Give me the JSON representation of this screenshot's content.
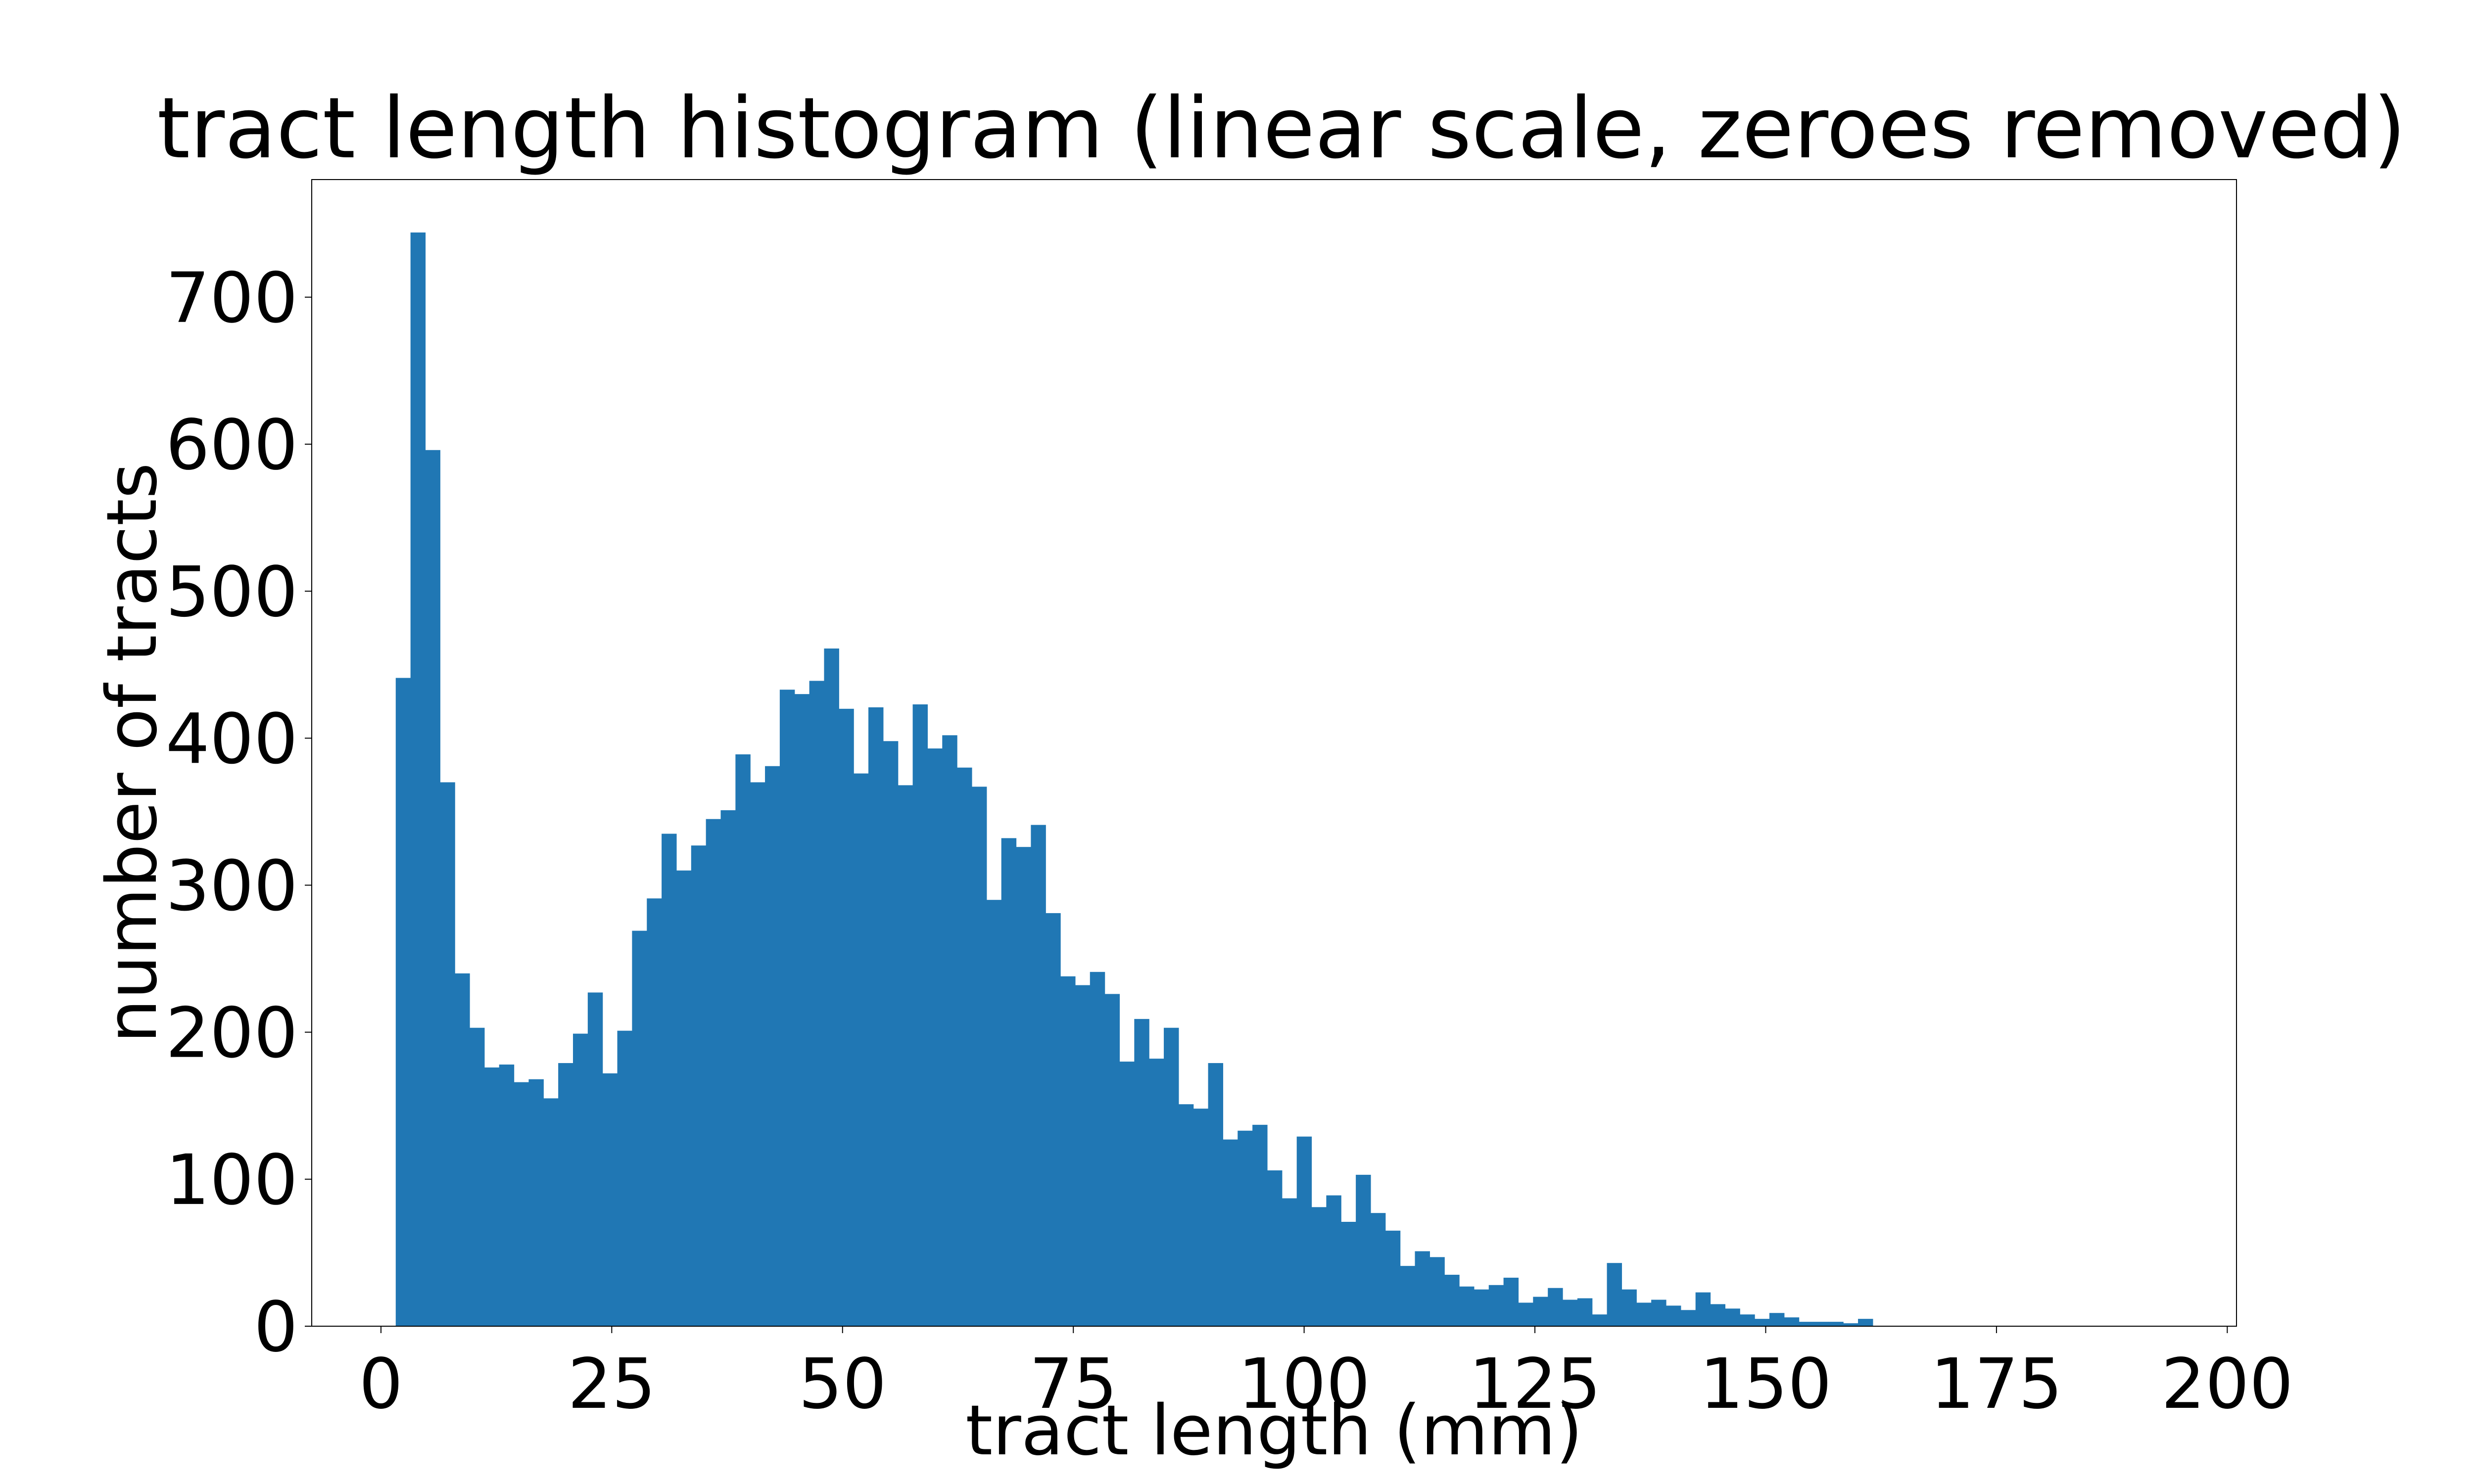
{
  "chart_data": {
    "type": "bar",
    "title": "tract length histogram (linear scale, zeroes removed)",
    "xlabel": "tract length (mm)",
    "ylabel": "number of tracts",
    "xlim": [
      -7.5,
      201
    ],
    "ylim": [
      0,
      780
    ],
    "xticks": [
      0,
      25,
      50,
      75,
      100,
      125,
      150,
      175,
      200
    ],
    "yticks": [
      0,
      100,
      200,
      300,
      400,
      500,
      600,
      700
    ],
    "bin_start": 1.6,
    "bin_width": 1.6,
    "values": [
      441,
      744,
      596,
      370,
      240,
      203,
      176,
      178,
      166,
      168,
      155,
      179,
      199,
      227,
      172,
      201,
      269,
      291,
      335,
      310,
      327,
      345,
      351,
      389,
      370,
      381,
      433,
      430,
      439,
      461,
      420,
      376,
      421,
      398,
      368,
      423,
      393,
      402,
      380,
      367,
      290,
      332,
      326,
      341,
      281,
      238,
      232,
      241,
      226,
      180,
      209,
      182,
      203,
      151,
      148,
      179,
      127,
      133,
      137,
      106,
      87,
      129,
      81,
      89,
      71,
      103,
      77,
      65,
      41,
      51,
      47,
      35,
      27,
      25,
      28,
      33,
      16,
      20,
      26,
      18,
      19,
      8,
      43,
      25,
      16,
      18,
      14,
      11,
      23,
      15,
      12,
      8,
      5,
      9,
      6,
      3,
      3,
      3,
      2,
      5
    ],
    "bar_color": "#2077b4",
    "grid": false
  }
}
